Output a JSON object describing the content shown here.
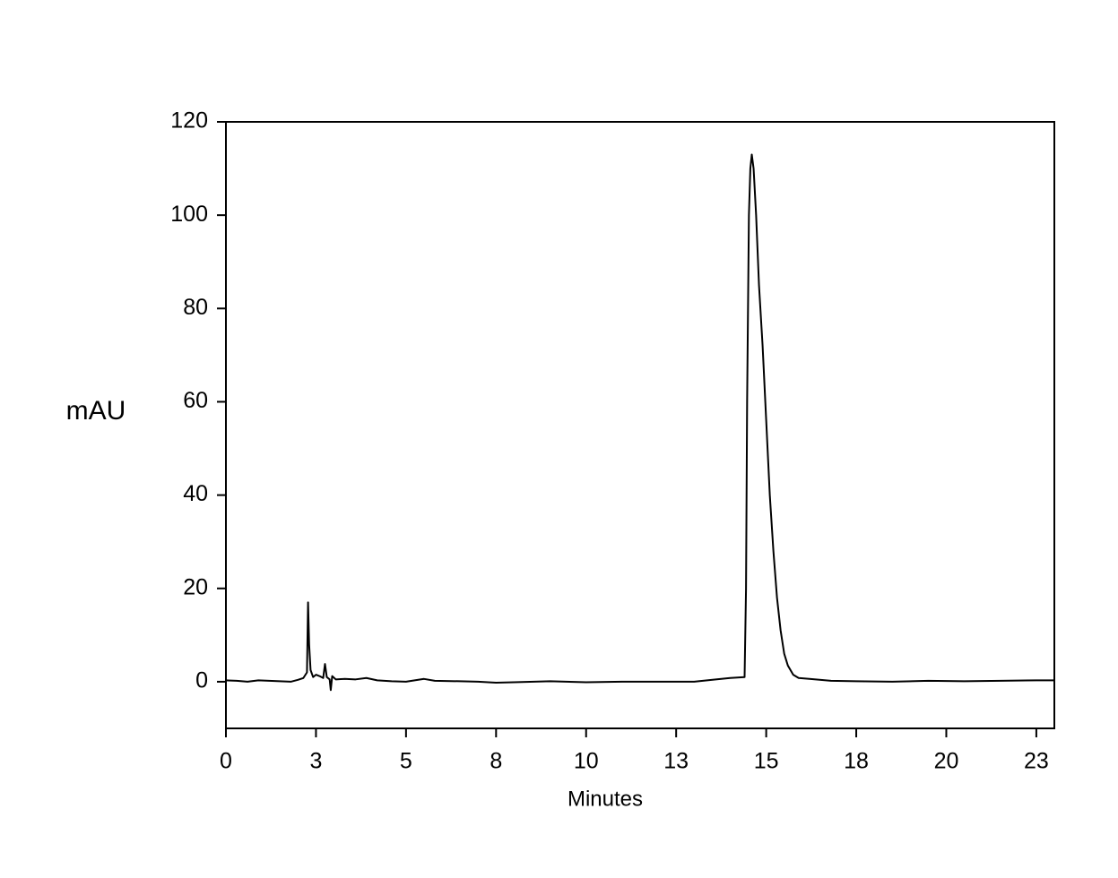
{
  "chart_data": {
    "type": "line",
    "x_label": "Minutes",
    "y_label": "mAU",
    "xlim": [
      0,
      23
    ],
    "ylim": [
      -10,
      120
    ],
    "xticks": [
      0,
      {
        "value": 2.5,
        "label": "3"
      },
      5,
      {
        "value": 7.5,
        "label": "8"
      },
      10,
      {
        "value": 12.5,
        "label": "13"
      },
      15,
      {
        "value": 17.5,
        "label": "18"
      },
      20,
      {
        "value": 22.5,
        "label": "23"
      }
    ],
    "yticks": [
      0,
      20,
      40,
      60,
      80,
      100,
      120
    ],
    "color": "#000000",
    "x": [
      0,
      0.3,
      0.6,
      0.9,
      1.2,
      1.5,
      1.8,
      2.0,
      2.15,
      2.25,
      2.28,
      2.31,
      2.35,
      2.42,
      2.5,
      2.6,
      2.7,
      2.75,
      2.8,
      2.88,
      2.91,
      2.95,
      3.05,
      3.3,
      3.6,
      3.9,
      4.2,
      4.6,
      5.0,
      5.5,
      5.8,
      6.5,
      7.0,
      7.5,
      8.0,
      9.0,
      10.0,
      11.0,
      12.0,
      13.0,
      13.6,
      14.0,
      14.4,
      14.44,
      14.47,
      14.52,
      14.56,
      14.6,
      14.65,
      14.72,
      14.8,
      14.9,
      15.0,
      15.1,
      15.2,
      15.3,
      15.4,
      15.5,
      15.6,
      15.75,
      15.9,
      16.2,
      16.8,
      17.5,
      18.5,
      19.5,
      20.5,
      21.5,
      22.5,
      23.0
    ],
    "values": [
      0.3,
      0.2,
      0.0,
      0.3,
      0.2,
      0.1,
      0.0,
      0.4,
      0.8,
      2.0,
      17.0,
      8.0,
      2.5,
      1.0,
      1.5,
      1.2,
      0.8,
      3.8,
      1.0,
      0.5,
      -1.8,
      1.2,
      0.5,
      0.6,
      0.5,
      0.8,
      0.3,
      0.1,
      0.0,
      0.6,
      0.2,
      0.1,
      0.0,
      -0.2,
      -0.1,
      0.1,
      -0.1,
      0.0,
      0.0,
      0.0,
      0.5,
      0.8,
      1.0,
      20,
      60,
      100,
      110,
      113,
      110,
      100,
      85,
      72,
      56,
      40,
      28,
      18,
      11,
      6,
      3.5,
      1.5,
      0.8,
      0.6,
      0.2,
      0.1,
      0.0,
      0.2,
      0.1,
      0.2,
      0.3,
      0.3
    ]
  }
}
